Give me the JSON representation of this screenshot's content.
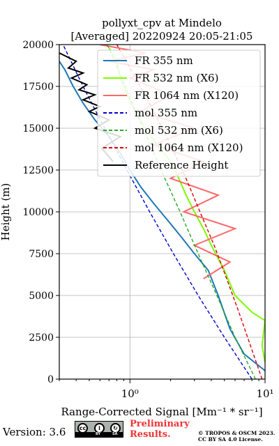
{
  "chart_data": {
    "type": "line",
    "title": "pollyxt_cpv at Mindelo",
    "subtitle": "[Averaged] 20220924 20:05-21:05",
    "ylabel": "Height (m)",
    "xlabel": "Range-Corrected Signal [Mm⁻¹ * sr⁻¹]",
    "xscale": "log",
    "xlim": [
      0.3,
      10
    ],
    "ylim": [
      0,
      20000
    ],
    "yticks": [
      0,
      2500,
      5000,
      7500,
      10000,
      12500,
      15000,
      17500,
      20000
    ],
    "xtick_labels": [
      "10⁰",
      "10¹"
    ],
    "grid": true,
    "legend_position": "upper-right",
    "series": [
      {
        "name": "FR 355 nm",
        "color": "#1f77b4",
        "style": "solid",
        "x": [
          10.0,
          7.0,
          5.5,
          4.5,
          3.8,
          3.0,
          2.4,
          1.9,
          1.5,
          1.2,
          1.0,
          0.85,
          0.7,
          0.55,
          0.45,
          0.38,
          0.33,
          0.3
        ],
        "y": [
          500,
          1500,
          3000,
          5000,
          6500,
          7500,
          8500,
          9500,
          10500,
          11500,
          12500,
          13500,
          14500,
          15500,
          16500,
          17500,
          18500,
          19000
        ]
      },
      {
        "name": "FR 532 nm (X6)",
        "color": "#7cfc00",
        "style": "solid",
        "x": [
          10.0,
          9.5,
          10.0,
          8.0,
          6.0,
          5.0,
          4.0,
          3.5,
          3.0,
          2.6,
          2.3,
          2.0,
          1.6,
          1.3,
          1.1,
          0.95,
          0.85,
          0.8,
          0.7
        ],
        "y": [
          1000,
          2000,
          3500,
          4000,
          5000,
          6500,
          8000,
          9000,
          10000,
          11000,
          12000,
          13000,
          14000,
          15000,
          16000,
          17000,
          18000,
          19000,
          19800
        ]
      },
      {
        "name": "FR 1064 nm (X120)",
        "color": "#ff6666",
        "style": "solid",
        "x": [
          3.5,
          5.5,
          3.0,
          6.0,
          2.5,
          4.5,
          2.0,
          3.5,
          1.5,
          3.0,
          1.2,
          2.0,
          1.0,
          1.5,
          0.7,
          1.3,
          0.6
        ],
        "y": [
          6000,
          7000,
          8000,
          9000,
          10000,
          11000,
          12000,
          13000,
          14000,
          15000,
          16000,
          17000,
          18000,
          18500,
          19000,
          19500,
          20000
        ]
      },
      {
        "name": "mol 355 nm",
        "color": "#0000cd",
        "style": "dashed",
        "x": [
          8.0,
          5.0,
          3.2,
          2.1,
          1.4,
          0.95,
          0.65,
          0.45,
          0.32
        ],
        "y": [
          0,
          2500,
          5000,
          7500,
          10000,
          12500,
          15000,
          17500,
          20000
        ]
      },
      {
        "name": "mol 532 nm (X6)",
        "color": "#22aa22",
        "style": "dashed",
        "x": [
          8.5,
          6.0,
          4.4,
          3.2,
          2.35,
          1.7,
          1.25,
          0.92,
          0.68
        ],
        "y": [
          0,
          2500,
          5000,
          7500,
          10000,
          12500,
          15000,
          17500,
          20000
        ]
      },
      {
        "name": "mol 1064 nm (X120)",
        "color": "#dd0000",
        "style": "dashed",
        "x": [
          9.5,
          7.8,
          6.4,
          5.2,
          4.2,
          3.3,
          2.6,
          2.0,
          1.5,
          1.1,
          0.8
        ],
        "y": [
          0,
          2000,
          4000,
          6000,
          8000,
          10000,
          12000,
          14000,
          16000,
          18000,
          20000
        ]
      },
      {
        "name": "Reference Height",
        "color": "#000000",
        "style": "solid",
        "x": [
          0.75,
          0.62,
          0.85,
          0.55,
          0.7,
          0.5,
          0.6,
          0.45,
          0.55,
          0.42,
          0.48,
          0.37,
          0.45,
          0.35,
          0.4,
          0.3
        ],
        "y": [
          13000,
          13800,
          14500,
          15000,
          15500,
          16000,
          16300,
          16700,
          17000,
          17300,
          17600,
          18000,
          18300,
          18600,
          19000,
          19500
        ]
      }
    ]
  },
  "footer": {
    "version": "Version: 3.6",
    "cc_icons": [
      "cc",
      "by",
      "sa"
    ],
    "cc_labels": [
      "BY",
      "SA"
    ],
    "preliminary": "Preliminary\nResults.",
    "copyright": "© TROPOS & OSCM 2023.\nCC BY SA 4.0 License."
  }
}
